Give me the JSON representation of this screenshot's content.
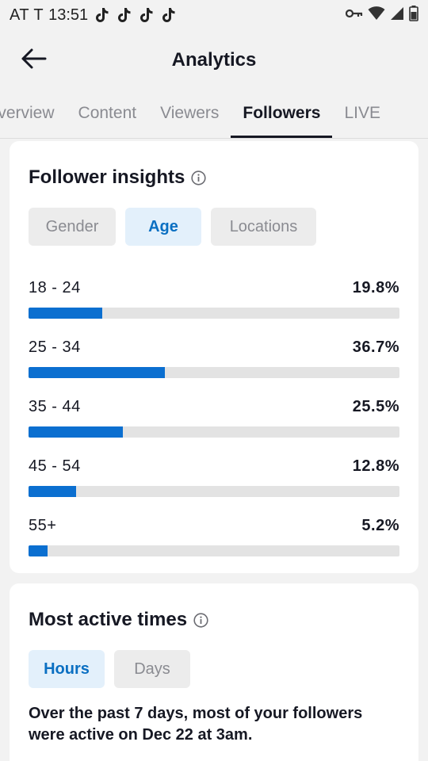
{
  "status_bar": {
    "carrier": "AT T",
    "time": "13:51",
    "notification_icons": [
      "tiktok-icon",
      "tiktok-icon",
      "tiktok-icon",
      "tiktok-icon"
    ],
    "system_icons": [
      "key-icon",
      "wifi-icon",
      "signal-icon",
      "battery-icon"
    ]
  },
  "header": {
    "title": "Analytics",
    "back_icon": "back-arrow-icon"
  },
  "tabs": [
    {
      "label": "Overview",
      "active": false
    },
    {
      "label": "Content",
      "active": false
    },
    {
      "label": "Viewers",
      "active": false
    },
    {
      "label": "Followers",
      "active": true
    },
    {
      "label": "LIVE",
      "active": false
    }
  ],
  "follower_insights": {
    "title": "Follower insights",
    "filters": [
      {
        "label": "Gender",
        "active": false
      },
      {
        "label": "Age",
        "active": true
      },
      {
        "label": "Locations",
        "active": false
      }
    ],
    "age_groups": [
      {
        "label": "18 - 24",
        "value": "19.8%",
        "fraction": 0.198
      },
      {
        "label": "25 - 34",
        "value": "36.7%",
        "fraction": 0.367
      },
      {
        "label": "35 - 44",
        "value": "25.5%",
        "fraction": 0.255
      },
      {
        "label": "45 - 54",
        "value": "12.8%",
        "fraction": 0.128
      },
      {
        "label": "55+",
        "value": "5.2%",
        "fraction": 0.052
      }
    ]
  },
  "most_active": {
    "title": "Most active times",
    "filters": [
      {
        "label": "Hours",
        "active": true
      },
      {
        "label": "Days",
        "active": false
      }
    ],
    "description": "Over the past 7 days, most of your followers were active on Dec 22 at 3am."
  },
  "colors": {
    "accent": "#0b6fd0",
    "accent_text": "#0a6fc2",
    "accent_bg": "#e3f0fb",
    "track": "#e3e3e3"
  }
}
